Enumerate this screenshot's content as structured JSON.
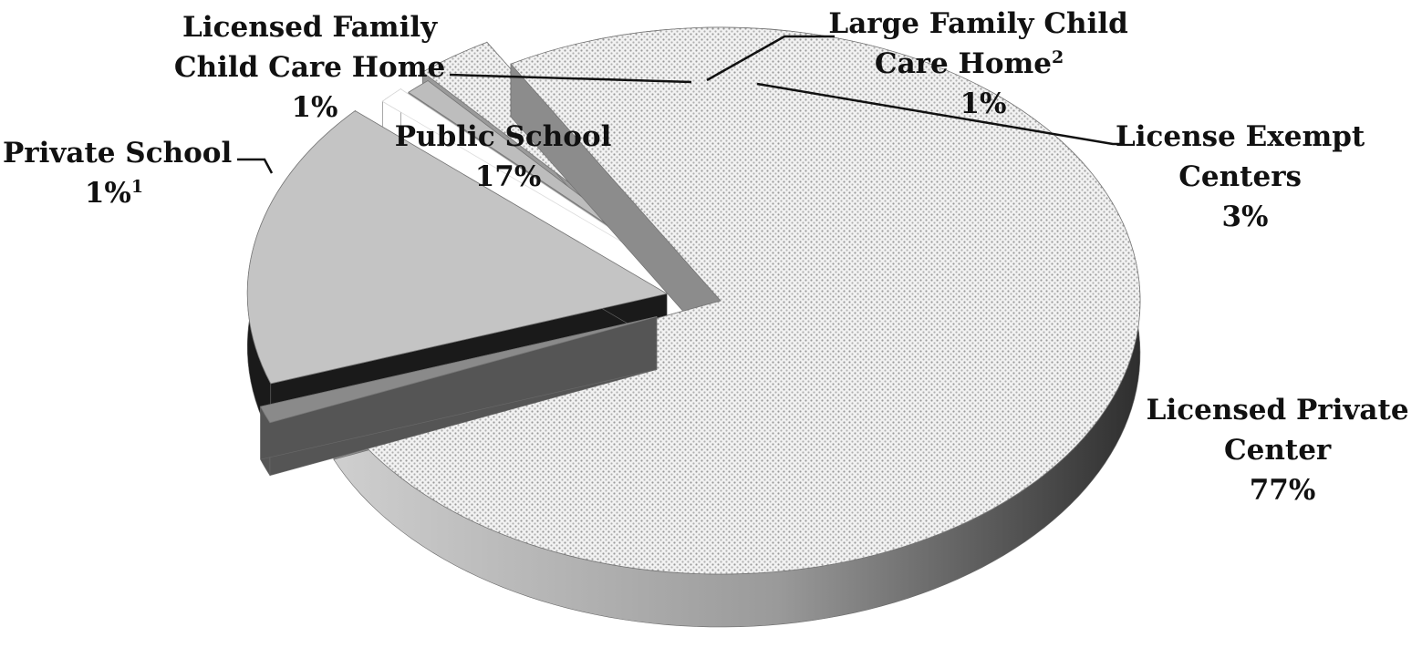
{
  "chart_data": {
    "type": "pie",
    "style": "3d-exploded",
    "slices": [
      {
        "label": "Licensed Private Center",
        "value": 77,
        "value_label": "77%",
        "color": "#d9d9d9",
        "color_side": "#8c8c8c",
        "pattern": "dotted"
      },
      {
        "label": "Private School",
        "value": 1,
        "value_label": "1%",
        "superscript": "1",
        "color": "#8a8a8a",
        "color_side": "#555555",
        "pattern": "solid"
      },
      {
        "label": "Public School",
        "value": 17,
        "value_label": "17%",
        "color": "#c4c4c4",
        "color_side": "#1a1a1a",
        "pattern": "solid"
      },
      {
        "label": "Licensed Family Child Care Home",
        "value": 1,
        "value_label": "1%",
        "color": "#ffffff",
        "color_side": "#ffffff",
        "pattern": "white"
      },
      {
        "label": "Large Family Child Care Home",
        "value": 1,
        "value_label": "1%",
        "superscript": "2",
        "color": "#bdbdbd",
        "color_side": "#8a8a8a",
        "pattern": "solid"
      },
      {
        "label": "License Exempt Centers",
        "value": 3,
        "value_label": "3%",
        "color": "#e6e6e6",
        "color_side": "#9a9a9a",
        "pattern": "dotted"
      }
    ],
    "legend": "none"
  }
}
